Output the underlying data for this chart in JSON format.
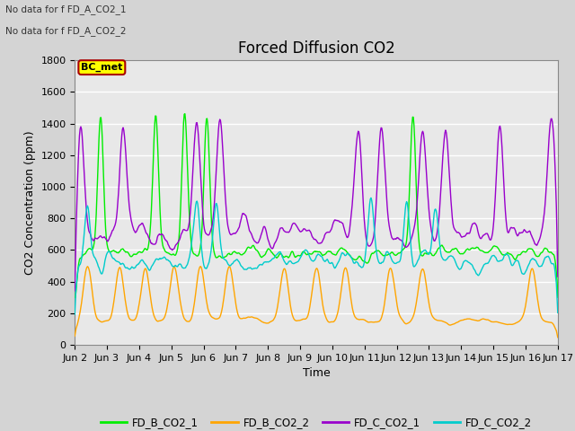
{
  "title": "Forced Diffusion CO2",
  "xlabel": "Time",
  "ylabel": "CO2 Concentration (ppm)",
  "ylim": [
    0,
    1800
  ],
  "yticks": [
    0,
    200,
    400,
    600,
    800,
    1000,
    1200,
    1400,
    1600,
    1800
  ],
  "xtick_labels": [
    "Jun 2",
    "Jun 3",
    "Jun 4",
    "Jun 5",
    "Jun 6",
    "Jun 7",
    "Jun 8",
    "Jun 9",
    "Jun 10",
    "Jun 11",
    "Jun 12",
    "Jun 13",
    "Jun 14",
    "Jun 15",
    "Jun 16",
    "Jun 17"
  ],
  "no_data_text1": "No data for f FD_A_CO2_1",
  "no_data_text2": "No data for f FD_A_CO2_2",
  "bc_met_label": "BC_met",
  "bc_met_color": "#FFFF00",
  "bc_met_border": "#AA0000",
  "legend_entries": [
    "FD_B_CO2_1",
    "FD_B_CO2_2",
    "FD_C_CO2_1",
    "FD_C_CO2_2"
  ],
  "legend_colors": [
    "#00EE00",
    "#FFA500",
    "#9900CC",
    "#00CCCC"
  ],
  "line_colors": {
    "FD_B_CO2_1": "#00EE00",
    "FD_B_CO2_2": "#FFA500",
    "FD_C_CO2_1": "#9900CC",
    "FD_C_CO2_2": "#00CCCC"
  },
  "fig_facecolor": "#D4D4D4",
  "plot_facecolor": "#E8E8E8",
  "grid_color": "#FFFFFF",
  "title_fontsize": 12,
  "label_fontsize": 9,
  "tick_fontsize": 8
}
